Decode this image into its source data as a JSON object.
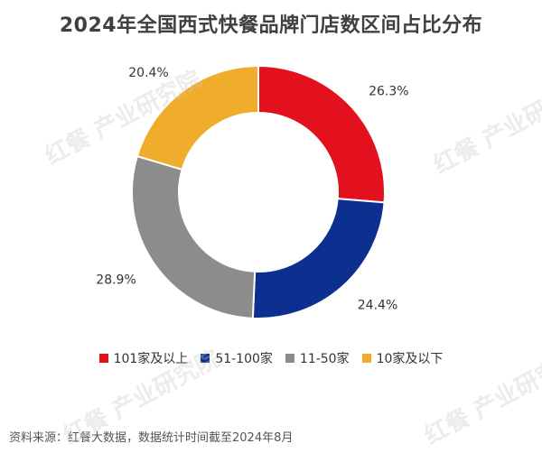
{
  "title": "2024年全国西式快餐品牌门店数区间占比分布",
  "source": "资料来源：红餐大数据，数据统计时间截至2024年8月",
  "watermark_text": "红餐 产业研究院",
  "chart_data": {
    "type": "pie",
    "donut": true,
    "title": "2024年全国西式快餐品牌门店数区间占比分布",
    "legend_position": "bottom",
    "slices": [
      {
        "name": "101家及以上",
        "value": 26.3,
        "label": "26.3%",
        "color": "#e3101e"
      },
      {
        "name": "51-100家",
        "value": 24.4,
        "label": "24.4%",
        "color": "#0d2f8f"
      },
      {
        "name": "11-50家",
        "value": 28.9,
        "label": "28.9%",
        "color": "#8c8c8c"
      },
      {
        "name": "10家及以下",
        "value": 20.4,
        "label": "20.4%",
        "color": "#f0ad2b"
      }
    ]
  }
}
